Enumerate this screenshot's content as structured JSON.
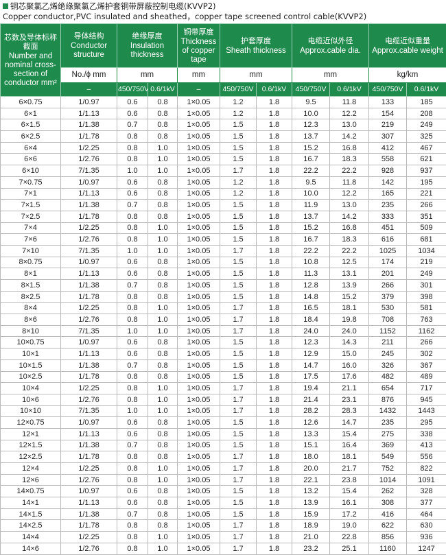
{
  "header": {
    "title_cn": "铜芯聚氯乙烯绝缘聚氯乙烯护套铜带屏蔽控制电缆(KVVP2)",
    "title_en": "Copper conductor,PVC insulated and sheathed，copper tape screened control cable(KVVP2)"
  },
  "table": {
    "columns": [
      {
        "cn": "芯数及导体标称截面",
        "en": "Number and nominal cross-section of conductor mm²"
      },
      {
        "cn": "导体结构",
        "en": "Conductor structure",
        "unit": "No./ϕ mm",
        "sub": [
          "–"
        ]
      },
      {
        "cn": "绝缘厚度",
        "en": "Insulation thickness",
        "unit": "mm",
        "sub": [
          "450/750V",
          "0.6/1kV"
        ]
      },
      {
        "cn": "铜带厚度",
        "en": "Thickness of copper tape",
        "unit": "mm",
        "sub": [
          "–"
        ]
      },
      {
        "cn": "护套厚度",
        "en": "Sheath thickness",
        "unit": "mm",
        "sub": [
          "450/750V",
          "0.6/1kV"
        ]
      },
      {
        "cn": "电缆近似外径",
        "en": "Approx.cable dia.",
        "unit": "mm",
        "sub": [
          "450/750V",
          "0.6/1kV"
        ]
      },
      {
        "cn": "电缆近似重量",
        "en": "Approx.cable weight",
        "unit": "kg/km",
        "sub": [
          "450/750V",
          "0.6/1kV"
        ]
      }
    ],
    "rows": [
      [
        "6×0.75",
        "1/0.97",
        "0.6",
        "0.8",
        "1×0.05",
        "1.2",
        "1.8",
        "9.5",
        "11.8",
        "133",
        "185"
      ],
      [
        "6×1",
        "1/1.13",
        "0.6",
        "0.8",
        "1×0.05",
        "1.2",
        "1.8",
        "10.0",
        "12.2",
        "154",
        "208"
      ],
      [
        "6×1.5",
        "1/1.38",
        "0.7",
        "0.8",
        "1×0.05",
        "1.5",
        "1.8",
        "12.3",
        "13.0",
        "219",
        "249"
      ],
      [
        "6×2.5",
        "1/1.78",
        "0.8",
        "0.8",
        "1×0.05",
        "1.5",
        "1.8",
        "13.7",
        "14.2",
        "307",
        "325"
      ],
      [
        "6×4",
        "1/2.25",
        "0.8",
        "1.0",
        "1×0.05",
        "1.5",
        "1.8",
        "15.2",
        "16.8",
        "412",
        "467"
      ],
      [
        "6×6",
        "1/2.76",
        "0.8",
        "1.0",
        "1×0.05",
        "1.5",
        "1.8",
        "16.7",
        "18.3",
        "558",
        "621"
      ],
      [
        "6×10",
        "7/1.35",
        "1.0",
        "1.0",
        "1×0.05",
        "1.7",
        "1.8",
        "22.2",
        "22.2",
        "928",
        "937"
      ],
      [
        "7×0.75",
        "1/0.97",
        "0.6",
        "0.8",
        "1×0.05",
        "1.2",
        "1.8",
        "9.5",
        "11.8",
        "142",
        "195"
      ],
      [
        "7×1",
        "1/1.13",
        "0.6",
        "0.8",
        "1×0.05",
        "1.2",
        "1.8",
        "10.0",
        "12.2",
        "165",
        "221"
      ],
      [
        "7×1.5",
        "1/1.38",
        "0.7",
        "0.8",
        "1×0.05",
        "1.5",
        "1.8",
        "11.9",
        "13.0",
        "235",
        "266"
      ],
      [
        "7×2.5",
        "1/1.78",
        "0.8",
        "0.8",
        "1×0.05",
        "1.5",
        "1.8",
        "13.7",
        "14.2",
        "333",
        "351"
      ],
      [
        "7×4",
        "1/2.25",
        "0.8",
        "1.0",
        "1×0.05",
        "1.5",
        "1.8",
        "15.2",
        "16.8",
        "451",
        "509"
      ],
      [
        "7×6",
        "1/2.76",
        "0.8",
        "1.0",
        "1×0.05",
        "1.5",
        "1.8",
        "16.7",
        "18.3",
        "616",
        "681"
      ],
      [
        "7×10",
        "7/1.35",
        "1.0",
        "1.0",
        "1×0.05",
        "1.7",
        "1.8",
        "22.2",
        "22.2",
        "1025",
        "1034"
      ],
      [
        "8×0.75",
        "1/0.97",
        "0.6",
        "0.8",
        "1×0.05",
        "1.5",
        "1.8",
        "10.8",
        "12.5",
        "174",
        "219"
      ],
      [
        "8×1",
        "1/1.13",
        "0.6",
        "0.8",
        "1×0.05",
        "1.5",
        "1.8",
        "11.3",
        "13.1",
        "201",
        "249"
      ],
      [
        "8×1.5",
        "1/1.38",
        "0.7",
        "0.8",
        "1×0.05",
        "1.5",
        "1.8",
        "12.8",
        "13.9",
        "266",
        "301"
      ],
      [
        "8×2.5",
        "1/1.78",
        "0.8",
        "0.8",
        "1×0.05",
        "1.5",
        "1.8",
        "14.8",
        "15.2",
        "379",
        "398"
      ],
      [
        "8×4",
        "1/2.25",
        "0.8",
        "1.0",
        "1×0.05",
        "1.7",
        "1.8",
        "16.5",
        "18.1",
        "530",
        "581"
      ],
      [
        "8×6",
        "1/2.76",
        "0.8",
        "1.0",
        "1×0.05",
        "1.7",
        "1.8",
        "18.4",
        "19.8",
        "708",
        "763"
      ],
      [
        "8×10",
        "7/1.35",
        "1.0",
        "1.0",
        "1×0.05",
        "1.7",
        "1.8",
        "24.0",
        "24.0",
        "1152",
        "1162"
      ],
      [
        "10×0.75",
        "1/0.97",
        "0.6",
        "0.8",
        "1×0.05",
        "1.5",
        "1.8",
        "12.3",
        "14.3",
        "211",
        "266"
      ],
      [
        "10×1",
        "1/1.13",
        "0.6",
        "0.8",
        "1×0.05",
        "1.5",
        "1.8",
        "12.9",
        "15.0",
        "245",
        "302"
      ],
      [
        "10×1.5",
        "1/1.38",
        "0.7",
        "0.8",
        "1×0.05",
        "1.5",
        "1.8",
        "14.7",
        "16.0",
        "326",
        "367"
      ],
      [
        "10×2.5",
        "1/1.78",
        "0.8",
        "0.8",
        "1×0.05",
        "1.5",
        "1.8",
        "17.5",
        "17.6",
        "482",
        "489"
      ],
      [
        "10×4",
        "1/2.25",
        "0.8",
        "1.0",
        "1×0.05",
        "1.7",
        "1.8",
        "19.4",
        "21.1",
        "654",
        "717"
      ],
      [
        "10×6",
        "1/2.76",
        "0.8",
        "1.0",
        "1×0.05",
        "1.7",
        "1.8",
        "21.4",
        "23.1",
        "876",
        "945"
      ],
      [
        "10×10",
        "7/1.35",
        "1.0",
        "1.0",
        "1×0.05",
        "1.7",
        "1.8",
        "28.2",
        "28.3",
        "1432",
        "1443"
      ],
      [
        "12×0.75",
        "1/0.97",
        "0.6",
        "0.8",
        "1×0.05",
        "1.5",
        "1.8",
        "12.6",
        "14.7",
        "235",
        "295"
      ],
      [
        "12×1",
        "1/1.13",
        "0.6",
        "0.8",
        "1×0.05",
        "1.5",
        "1.8",
        "13.3",
        "15.4",
        "275",
        "338"
      ],
      [
        "12×1.5",
        "1/1.38",
        "0.7",
        "0.8",
        "1×0.05",
        "1.5",
        "1.8",
        "15.1",
        "16.4",
        "369",
        "413"
      ],
      [
        "12×2.5",
        "1/1.78",
        "0.8",
        "0.8",
        "1×0.05",
        "1.7",
        "1.8",
        "18.0",
        "18.1",
        "549",
        "556"
      ],
      [
        "12×4",
        "1/2.25",
        "0.8",
        "1.0",
        "1×0.05",
        "1.7",
        "1.8",
        "20.0",
        "21.7",
        "752",
        "822"
      ],
      [
        "12×6",
        "1/2.76",
        "0.8",
        "1.0",
        "1×0.05",
        "1.7",
        "1.8",
        "22.1",
        "23.8",
        "1014",
        "1091"
      ],
      [
        "14×0.75",
        "1/0.97",
        "0.6",
        "0.8",
        "1×0.05",
        "1.5",
        "1.8",
        "13.2",
        "15.4",
        "262",
        "328"
      ],
      [
        "14×1",
        "1/1.13",
        "0.6",
        "0.8",
        "1×0.05",
        "1.5",
        "1.8",
        "13.9",
        "16.1",
        "308",
        "377"
      ],
      [
        "14×1.5",
        "1/1.38",
        "0.7",
        "0.8",
        "1×0.05",
        "1.5",
        "1.8",
        "15.9",
        "17.2",
        "416",
        "464"
      ],
      [
        "14×2.5",
        "1/1.78",
        "0.8",
        "0.8",
        "1×0.05",
        "1.7",
        "1.8",
        "18.9",
        "19.0",
        "622",
        "630"
      ],
      [
        "14×4",
        "1/2.25",
        "0.8",
        "1.0",
        "1×0.05",
        "1.7",
        "1.8",
        "21.0",
        "22.8",
        "856",
        "936"
      ],
      [
        "14×6",
        "1/2.76",
        "0.8",
        "1.0",
        "1×0.05",
        "1.7",
        "1.8",
        "23.2",
        "25.1",
        "1160",
        "1247"
      ]
    ]
  }
}
